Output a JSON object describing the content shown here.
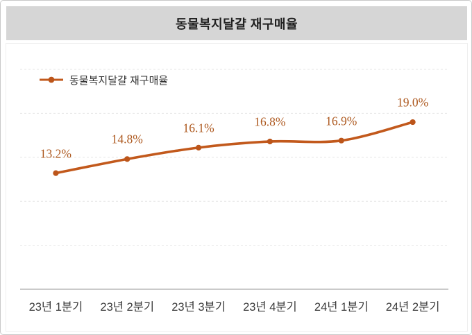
{
  "title": "동물복지달걀 재구매율",
  "legend": {
    "label": "동물복지달걀 재구매율"
  },
  "colors": {
    "line": "#c2591c",
    "marker": "#bc551a",
    "data_label": "#ad581e",
    "title_band_bg": "#d6d6d6",
    "title_text": "#1f1f1f",
    "gridline": "#e5e5e5",
    "axis_line": "#c3c3c3",
    "x_label": "#3a3a3a"
  },
  "chart_data": {
    "type": "line",
    "title": "동물복지달걀 재구매율",
    "categories": [
      "23년 1분기",
      "23년 2분기",
      "23년 3분기",
      "23년 4분기",
      "24년 1분기",
      "24년 2분기"
    ],
    "series": [
      {
        "name": "동물복지달걀 재구매율",
        "values": [
          13.2,
          14.8,
          16.1,
          16.8,
          16.9,
          19.0
        ]
      }
    ],
    "data_labels": [
      "13.2%",
      "14.8%",
      "16.1%",
      "16.8%",
      "16.9%",
      "19.0%"
    ],
    "xlabel": "",
    "ylabel": "",
    "ylim": [
      0,
      25
    ],
    "grid_step": 5,
    "grid": "dashed-horizontal-only",
    "y_axis_ticks_visible": false,
    "legend_position": "top-left",
    "smooth": true,
    "marker": "circle"
  }
}
